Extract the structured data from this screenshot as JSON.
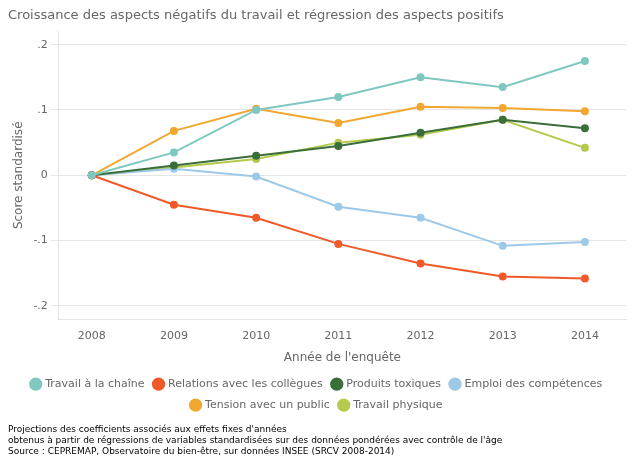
{
  "chart_data": {
    "type": "line",
    "title": "Croissance des aspects négatifs du travail et régression des aspects positifs",
    "xlabel": "Année de l'enquête",
    "ylabel": "Score standardisé",
    "x": [
      2008,
      2009,
      2010,
      2011,
      2012,
      2013,
      2014
    ],
    "series": [
      {
        "name": "Travail à la chaîne",
        "color": "#7ec8c0",
        "values": [
          0.0,
          0.035,
          0.1,
          0.12,
          0.15,
          0.135,
          0.175
        ]
      },
      {
        "name": "Relations avec les collègues",
        "color": "#f05a28",
        "values": [
          0.0,
          -0.045,
          -0.065,
          -0.105,
          -0.135,
          -0.155,
          -0.158
        ]
      },
      {
        "name": "Produits toxiques",
        "color": "#3a6e3a",
        "values": [
          0.0,
          0.015,
          0.03,
          0.045,
          0.065,
          0.085,
          0.072
        ]
      },
      {
        "name": "Emploi des compétences",
        "color": "#9dc9e8",
        "values": [
          0.0,
          0.01,
          -0.002,
          -0.048,
          -0.065,
          -0.108,
          -0.102
        ]
      },
      {
        "name": "Tension avec un public",
        "color": "#f0a830",
        "values": [
          0.0,
          0.068,
          0.102,
          0.08,
          0.105,
          0.103,
          0.098
        ]
      },
      {
        "name": "Travail physique",
        "color": "#b5c94c",
        "values": [
          0.0,
          0.012,
          0.025,
          0.05,
          0.062,
          0.085,
          0.042
        ]
      }
    ],
    "xlim": [
      2007.6,
      2014.5
    ],
    "xticks": [
      2008,
      2009,
      2010,
      2011,
      2012,
      2013,
      2014
    ],
    "ylim": [
      -0.22,
      0.22
    ],
    "yticks": [
      {
        "value": -0.2,
        "label": "-.2"
      },
      {
        "value": -0.1,
        "label": "-.1"
      },
      0,
      {
        "value": 0.1,
        "label": ".1"
      },
      {
        "value": 0.2,
        "label": ".2"
      }
    ],
    "grid": "y",
    "legend": "bottom",
    "marker": "circle",
    "annotations": [
      "Projections des coefficients associés aux effets fixes d'années",
      "obtenus à partir de régressions de variables standardisées sur des données pondérées avec contrôle de l'âge",
      "Source : CEPREMAP, Observatoire du bien-être, sur données INSEE (SRCV 2008-2014)"
    ]
  }
}
